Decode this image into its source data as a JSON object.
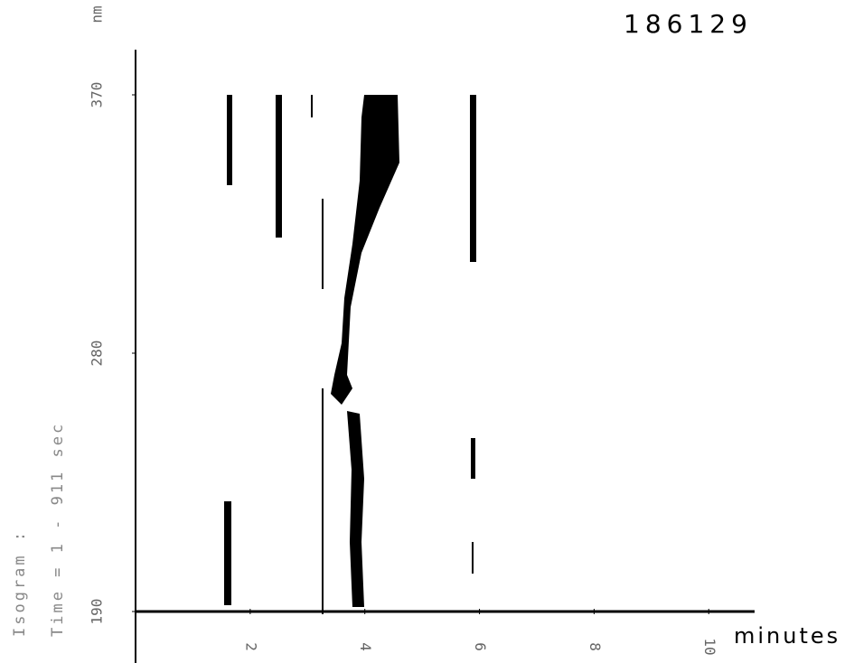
{
  "chart_data": {
    "type": "isogram",
    "title": "186129",
    "x_label": "minutes",
    "y_label": "nm",
    "caption_lines": [
      "Isogram :",
      "Time = 1 - 911 sec"
    ],
    "xlim": [
      0,
      10.8
    ],
    "xticks": [
      2,
      4,
      6,
      8,
      10
    ],
    "ylim": [
      190,
      370
    ],
    "yticks": [
      190,
      280,
      370
    ]
  }
}
